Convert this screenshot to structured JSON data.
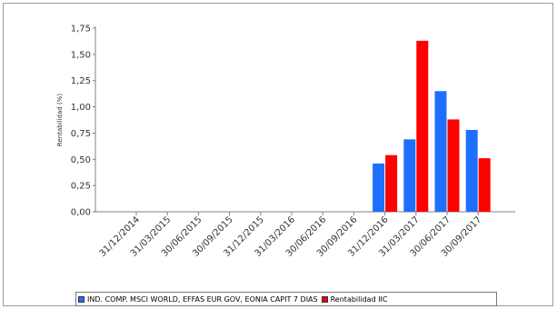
{
  "chart_data": {
    "type": "bar",
    "title": "",
    "xlabel": "",
    "ylabel": "Rentabilidad (%)",
    "ylim": [
      0,
      1.75
    ],
    "yticks": [
      "0,00",
      "0,25",
      "0,50",
      "0,75",
      "1,00",
      "1,25",
      "1,50",
      "1,75"
    ],
    "categories": [
      "31/12/2014",
      "31/03/2015",
      "30/06/2015",
      "30/09/2015",
      "31/12/2015",
      "31/03/2016",
      "30/06/2016",
      "30/09/2016",
      "31/12/2016",
      "31/03/2017",
      "30/06/2017",
      "30/09/2017"
    ],
    "series": [
      {
        "name": "IND. COMP. MSCI WORLD, EFFAS EUR GOV, EONIA CAPIT 7 DIAS",
        "color": "#1f6fff",
        "values": [
          null,
          null,
          null,
          null,
          null,
          null,
          null,
          null,
          0.46,
          0.69,
          1.15,
          0.78
        ]
      },
      {
        "name": "Rentabilidad IIC",
        "color": "#ff0000",
        "values": [
          null,
          null,
          null,
          null,
          null,
          null,
          null,
          null,
          0.54,
          1.63,
          0.88,
          0.51
        ]
      }
    ],
    "grid": false,
    "legend_position": "bottom"
  },
  "legend": {
    "series1_label": "IND. COMP. MSCI WORLD, EFFAS EUR GOV, EONIA CAPIT 7 DIAS",
    "series2_label": "Rentabilidad IIC",
    "series1_color": "#1f6fff",
    "series2_color": "#ff0000"
  }
}
